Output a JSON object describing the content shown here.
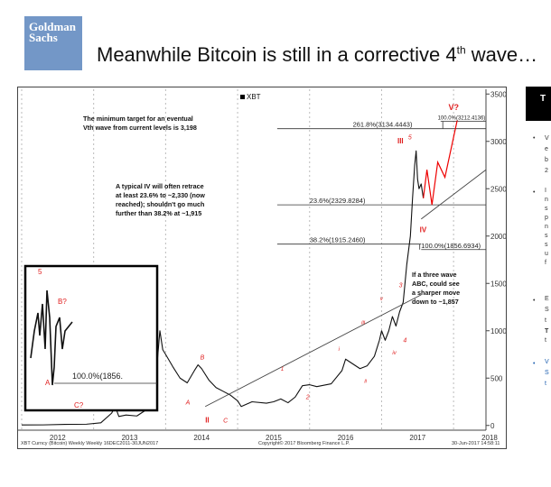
{
  "header": {
    "logo_line1": "Goldman",
    "logo_line2": "Sachs",
    "title_main": "Meanwhile Bitcoin is still in a corrective 4",
    "title_sup": "th",
    "title_end": " wave…"
  },
  "right_panel": {
    "head": "T",
    "bullets": [
      "•",
      "•",
      "•",
      "•"
    ],
    "fragments": [
      "V",
      "e",
      "b",
      "2",
      "I",
      "n",
      "s",
      "p",
      "n",
      "s",
      "s",
      "u",
      "f",
      "E",
      "S",
      "t",
      "T",
      "t",
      "V",
      "S",
      "t"
    ]
  },
  "chart_data": {
    "type": "line",
    "legend": "XBT",
    "footer_left": "XBT Curncy (Bitcoin) Weekly   Weekly 16DEC2011-30JUN2017",
    "footer_mid": "Copyright© 2017 Bloomberg Finance L.P.",
    "footer_right": "30-Jun-2017  14:58:11",
    "x_ticks": [
      "2012",
      "2013",
      "2014",
      "2015",
      "2016",
      "2017",
      "2018"
    ],
    "y_ticks": [
      0,
      500,
      1000,
      1500,
      2000,
      2500,
      3000,
      3500
    ],
    "ylim": [
      -50,
      3550
    ],
    "xlim": [
      2011.95,
      2018.45
    ],
    "series": [
      {
        "values": [
          [
            2012.0,
            5
          ],
          [
            2012.3,
            6
          ],
          [
            2012.6,
            11
          ],
          [
            2012.9,
            13
          ],
          [
            2013.1,
            28
          ],
          [
            2013.25,
            130
          ],
          [
            2013.3,
            200
          ],
          [
            2013.35,
            95
          ],
          [
            2013.45,
            110
          ],
          [
            2013.6,
            100
          ],
          [
            2013.8,
            200
          ],
          [
            2013.87,
            550
          ],
          [
            2013.92,
            1000
          ],
          [
            2013.96,
            800
          ],
          [
            2014.0,
            750
          ],
          [
            2014.1,
            620
          ],
          [
            2014.2,
            500
          ],
          [
            2014.3,
            450
          ],
          [
            2014.4,
            580
          ],
          [
            2014.45,
            640
          ],
          [
            2014.5,
            600
          ],
          [
            2014.6,
            480
          ],
          [
            2014.7,
            400
          ],
          [
            2014.8,
            360
          ],
          [
            2014.9,
            320
          ],
          [
            2015.0,
            260
          ],
          [
            2015.05,
            200
          ],
          [
            2015.2,
            250
          ],
          [
            2015.4,
            235
          ],
          [
            2015.5,
            250
          ],
          [
            2015.6,
            280
          ],
          [
            2015.7,
            240
          ],
          [
            2015.8,
            300
          ],
          [
            2015.85,
            360
          ],
          [
            2015.9,
            420
          ],
          [
            2016.0,
            430
          ],
          [
            2016.1,
            410
          ],
          [
            2016.3,
            440
          ],
          [
            2016.45,
            580
          ],
          [
            2016.5,
            700
          ],
          [
            2016.6,
            650
          ],
          [
            2016.7,
            600
          ],
          [
            2016.8,
            630
          ],
          [
            2016.9,
            730
          ],
          [
            2016.97,
            900
          ],
          [
            2017.0,
            1000
          ],
          [
            2017.05,
            900
          ],
          [
            2017.1,
            1000
          ],
          [
            2017.15,
            1150
          ],
          [
            2017.2,
            1050
          ],
          [
            2017.25,
            1200
          ],
          [
            2017.3,
            1300
          ],
          [
            2017.35,
            1700
          ],
          [
            2017.4,
            2000
          ],
          [
            2017.43,
            2400
          ],
          [
            2017.46,
            2750
          ],
          [
            2017.48,
            2900
          ],
          [
            2017.5,
            2600
          ],
          [
            2017.52,
            2500
          ],
          [
            2017.55,
            2550
          ],
          [
            2017.58,
            2400
          ]
        ]
      },
      {
        "values": [
          [
            2017.58,
            2400
          ],
          [
            2017.63,
            2700
          ],
          [
            2017.7,
            2330
          ],
          [
            2017.78,
            2780
          ],
          [
            2017.88,
            2620
          ],
          [
            2018.05,
            3220
          ]
        ]
      }
    ],
    "fib_levels": [
      {
        "label": "261.8%(3134.4443)",
        "value": 3134
      },
      {
        "label": "100.0%(3212.4136)",
        "value": 3212
      },
      {
        "label": "23.6%(2329.8284)",
        "value": 2330
      },
      {
        "label": "38.2%(1915.2460)",
        "value": 1915
      },
      {
        "label": "100.0%(1856.6934)",
        "value": 1857
      }
    ],
    "wave_labels": [
      "V?",
      "III",
      "5",
      "IV",
      "3",
      "4",
      "iv",
      "v",
      "iii",
      "ii",
      "i",
      "1",
      "2",
      "B",
      "A",
      "C",
      "II",
      "I"
    ],
    "annotations": [
      [
        "The minimum target  for  an eventual",
        "Vth wave from current levels is 3,198"
      ],
      [
        "A typical IV will often retrace",
        "at least 23.6% to ~2,330 (now",
        "reached); shouldn't go much",
        "further  than  38.2% at ~1,915"
      ],
      [
        "If  a three wave",
        "ABC, could see",
        "a sharper move",
        "down to ~1,857"
      ]
    ],
    "inset": {
      "fib_label": "100.0%(1856.",
      "wave_labels": [
        "5",
        "B?",
        "A",
        "C?"
      ],
      "x_tick": "2012"
    }
  }
}
